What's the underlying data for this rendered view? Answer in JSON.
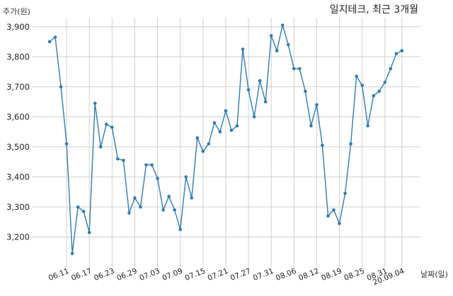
{
  "chart_data": {
    "type": "line",
    "title": "일지테크, 최근 3개월",
    "ylabel": "주가(원)",
    "xlabel": "날짜(일)",
    "ylim": [
      3100,
      3930
    ],
    "yticks": [
      3200,
      3300,
      3400,
      3500,
      3600,
      3700,
      3800,
      3900
    ],
    "ytick_labels": [
      "3,200",
      "3,300",
      "3,400",
      "3,500",
      "3,600",
      "3,700",
      "3,800",
      "3,900"
    ],
    "xtick_labels": [
      "06.11",
      "06.17",
      "06.23",
      "06.29",
      "07.03",
      "07.09",
      "07.15",
      "07.21",
      "07.27",
      "07.31",
      "08.06",
      "08.12",
      "08.19",
      "08.25",
      "08.31",
      "20.09.04"
    ],
    "xtick_index": [
      3,
      7,
      11,
      15,
      19,
      23,
      27,
      31,
      35,
      39,
      43,
      47,
      51,
      55,
      59,
      62
    ],
    "grid": true,
    "color": "#2f7db5",
    "series": [
      {
        "values": [
          3850,
          3865,
          3700,
          3510,
          3145,
          3300,
          3285,
          3215,
          3645,
          3500,
          3575,
          3565,
          3460,
          3455,
          3280,
          3330,
          3300,
          3440,
          3440,
          3395,
          3290,
          3335,
          3290,
          3225,
          3400,
          3330,
          3530,
          3485,
          3510,
          3580,
          3550,
          3620,
          3555,
          3570,
          3825,
          3690,
          3600,
          3720,
          3650,
          3870,
          3820,
          3905,
          3840,
          3760,
          3760,
          3685,
          3570,
          3640,
          3505,
          3270,
          3290,
          3245,
          3345,
          3510,
          3735,
          3705,
          3570,
          3670,
          3685,
          3715,
          3760,
          3810,
          3820
        ]
      }
    ]
  }
}
